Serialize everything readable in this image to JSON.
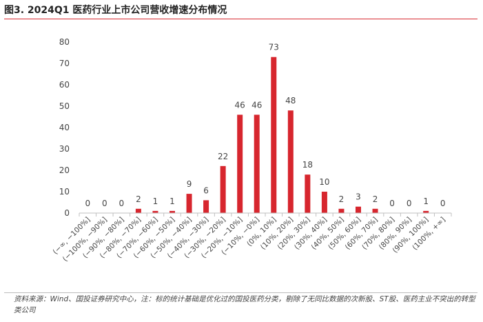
{
  "title": "图3. 2024Q1 医药行业上市公司营收增速分布情况",
  "source": "资料来源：Wind、国投证券研究中心，注：标的统计基础是优化过的国投医药分类，剔除了无同比数据的次新股、ST股、医药主业不突出的转型类公司",
  "colors": {
    "bar": "#d7262e",
    "title_rule": "#d7262e",
    "axis": "#bfbfbf"
  },
  "chart_data": {
    "type": "bar",
    "categories": [
      "(−∞, −100%]",
      "(−100%, −90%]",
      "(−90%, −80%]",
      "(−80%, −70%]",
      "(−70%, −60%]",
      "(−60%, −50%]",
      "(−50%, −40%]",
      "(−40%, −30%]",
      "(−30%, −20%]",
      "(−20%, −10%]",
      "(−10%, −0%]",
      "(0%, 10%]",
      "(10%, 20%]",
      "(20%, 30%]",
      "(30%, 40%]",
      "(40%, 50%]",
      "(50%, 60%]",
      "(60%, 70%]",
      "(70%, 80%]",
      "(80%, 90%]",
      "(90%, 100%]",
      "(100%, +∞]"
    ],
    "values": [
      0,
      0,
      0,
      2,
      1,
      1,
      9,
      6,
      22,
      46,
      46,
      73,
      48,
      18,
      10,
      2,
      3,
      2,
      0,
      0,
      1,
      0
    ],
    "ylim": [
      0,
      80
    ],
    "yticks": [
      0,
      10,
      20,
      30,
      40,
      50,
      60,
      70,
      80
    ],
    "grid": false,
    "legend": "none"
  }
}
